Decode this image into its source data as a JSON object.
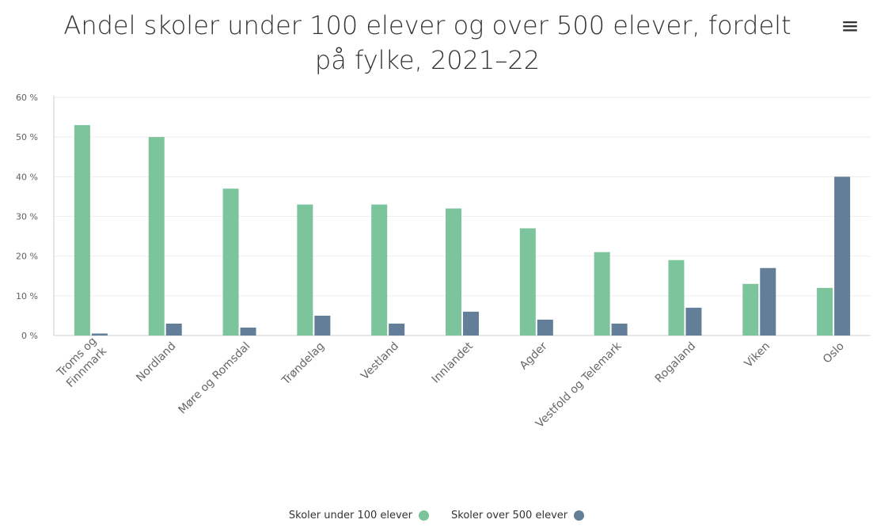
{
  "menu_icon": "hamburger-menu-icon",
  "chart_data": {
    "type": "bar",
    "title": "Andel skoler under 100 elever og over 500 elever, fordelt på fylke, 2021–22",
    "title_lines": [
      "Andel skoler under 100 elever og over 500 elever, fordelt",
      "på fylke, 2021–22"
    ],
    "categories": [
      "Troms og Finnmark",
      "Nordland",
      "Møre og Romsdal",
      "Trøndelag",
      "Vestland",
      "Innlandet",
      "Agder",
      "Vestfold og Telemark",
      "Rogaland",
      "Viken",
      "Oslo"
    ],
    "category_lines": [
      [
        "Troms og",
        "Finnmark"
      ],
      [
        "Nordland"
      ],
      [
        "Møre og Romsdal"
      ],
      [
        "Trøndelag"
      ],
      [
        "Vestland"
      ],
      [
        "Innlandet"
      ],
      [
        "Agder"
      ],
      [
        "Vestfold og Telemark"
      ],
      [
        "Rogaland"
      ],
      [
        "Viken"
      ],
      [
        "Oslo"
      ]
    ],
    "series": [
      {
        "name": "Skoler under 100 elever",
        "color": "#7cc49b",
        "values": [
          53,
          50,
          37,
          33,
          33,
          32,
          27,
          21,
          19,
          13,
          12
        ]
      },
      {
        "name": "Skoler over 500 elever",
        "color": "#637e98",
        "values": [
          0.5,
          3,
          2,
          5,
          3,
          6,
          4,
          3,
          7,
          17,
          40
        ]
      }
    ],
    "ylim": [
      0,
      60
    ],
    "yticks": [
      0,
      10,
      20,
      30,
      40,
      50,
      60
    ],
    "ytick_labels": [
      "0 %",
      "10 %",
      "20 %",
      "30 %",
      "40 %",
      "50 %",
      "60 %"
    ],
    "grid": true,
    "legend_position": "bottom-center"
  }
}
